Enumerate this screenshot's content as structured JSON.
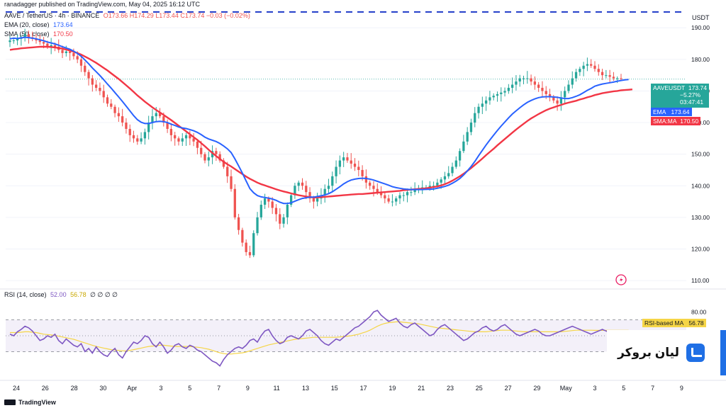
{
  "header": {
    "publisher": "ranadagger published on TradingView.com, May 04, 2025 16:12 UTC",
    "symbol_line": "AAVE / TetherUS · 4h · BINANCE",
    "ohlc": "O173.66 H174.29 L173.44 C173.74 −0.03 (−0.02%)",
    "ema_label": "EMA (20, close)",
    "ema_value": "173.64",
    "sma_label": "SMA (50, close)",
    "sma_value": "170.50",
    "rsi_label": "RSI (14, close)",
    "rsi_value": "52.00",
    "rsi_ma_value": "56.78",
    "rsi_extra": "∅ ∅ ∅ ∅"
  },
  "price_axis": {
    "unit": "USDT",
    "ticks": [
      190,
      180,
      170,
      160,
      150,
      140,
      130,
      120,
      110
    ],
    "tick_labels": [
      "190.00",
      "180.00",
      "170.00",
      "160.00",
      "150.00",
      "140.00",
      "130.00",
      "120.00",
      "110.00"
    ]
  },
  "rsi_axis": {
    "tick_labels": [
      "80.00"
    ],
    "upper_band": 70,
    "lower_band": 30
  },
  "price_tags": {
    "symbol": "AAVEUSDT",
    "price": "173.74",
    "change": "−5.27%",
    "countdown": "03:47:41",
    "ema_tag": "EMA",
    "ema_value": "173.64",
    "sma_tag": "SMA:MA",
    "sma_value": "170.50",
    "rsi_ma_tag": "RSI-based MA",
    "rsi_ma_value": "56.78"
  },
  "x_axis": {
    "labels": [
      "24",
      "26",
      "28",
      "30",
      "Apr",
      "3",
      "5",
      "7",
      "9",
      "11",
      "13",
      "15",
      "17",
      "19",
      "21",
      "23",
      "25",
      "27",
      "29",
      "May",
      "3",
      "5",
      "7",
      "9"
    ]
  },
  "colors": {
    "up": "#26a69a",
    "down": "#ef5350",
    "ema": "#2962ff",
    "sma": "#f23645",
    "rsi": "#7e57c2",
    "rsi_ma": "#f5d547",
    "dashed": "#1e3ac8"
  },
  "brand": {
    "name": "لیان بروکر"
  },
  "footer": {
    "tradingview": "TradingView"
  },
  "chart_data": {
    "type": "candlestick",
    "timeframe": "4h",
    "x_start": "Mar 24",
    "x_end": "May 4",
    "ylim": [
      108,
      197
    ],
    "dashed_level": 195,
    "closes": [
      186,
      186,
      186.5,
      187,
      188,
      187,
      186.5,
      186,
      185.5,
      185,
      184,
      184.5,
      184,
      183,
      182,
      182.5,
      182,
      181,
      180,
      178,
      176,
      174,
      172,
      171,
      170,
      168,
      166,
      165,
      163,
      162,
      160,
      158,
      156,
      155,
      154,
      155,
      157,
      160,
      162,
      163,
      162,
      160,
      158,
      156,
      155,
      154,
      155,
      156,
      155,
      154,
      152,
      150,
      148,
      149,
      151,
      150,
      148,
      146,
      143,
      139,
      130,
      126,
      122,
      119,
      118,
      125,
      130,
      134,
      136,
      135,
      133,
      131,
      128,
      130,
      134,
      137,
      140,
      141,
      140,
      138,
      136,
      135,
      136,
      137,
      139,
      140,
      143,
      146,
      148,
      149,
      148,
      147,
      146,
      145,
      143,
      141,
      140,
      139,
      138,
      137,
      136,
      135,
      135,
      136,
      137,
      137,
      138,
      138,
      139,
      139,
      139.5,
      139.5,
      140,
      140,
      141,
      142,
      143,
      144,
      146,
      148,
      151,
      154,
      157,
      160,
      163,
      165,
      166,
      167,
      168,
      168.5,
      169,
      169.5,
      170,
      171,
      172,
      173,
      174,
      174,
      174,
      173,
      172,
      171,
      170,
      169,
      168,
      167,
      166,
      168,
      170,
      172,
      174,
      176,
      177,
      178,
      178.5,
      178,
      177,
      176,
      175,
      175,
      174.5,
      174,
      174,
      173.74
    ],
    "ema_20": [
      186.5,
      186.7,
      186.6,
      186.8,
      187.0,
      186.9,
      186.7,
      186.5,
      186.2,
      185.9,
      185.5,
      185.2,
      184.9,
      184.5,
      184.0,
      183.6,
      183.2,
      182.6,
      181.9,
      181.0,
      179.8,
      178.6,
      177.3,
      176.1,
      174.9,
      173.6,
      172.2,
      170.9,
      169.5,
      168.1,
      166.7,
      165.2,
      163.7,
      162.2,
      160.9,
      160.1,
      159.7,
      159.7,
      160.0,
      160.3,
      160.4,
      160.3,
      160.0,
      159.5,
      159.1,
      158.6,
      158.3,
      158.1,
      157.8,
      157.4,
      156.9,
      156.2,
      155.4,
      154.8,
      154.4,
      154.0,
      153.4,
      152.6,
      151.7,
      150.5,
      148.5,
      146.3,
      144.0,
      141.5,
      139.1,
      137.8,
      136.9,
      136.5,
      136.3,
      136.1,
      135.8,
      135.4,
      134.8,
      134.4,
      134.4,
      134.6,
      135.1,
      135.6,
      136.0,
      136.2,
      136.4,
      136.4,
      136.6,
      136.8,
      137.1,
      137.5,
      138.1,
      138.9,
      139.7,
      140.6,
      141.3,
      141.8,
      142.1,
      142.3,
      142.4,
      142.3,
      142.1,
      141.8,
      141.4,
      141.0,
      140.6,
      140.2,
      139.7,
      139.4,
      139.2,
      139.0,
      138.9,
      138.8,
      138.8,
      138.8,
      138.8,
      138.9,
      138.9,
      139.0,
      139.2,
      139.5,
      139.8,
      140.2,
      140.8,
      141.5,
      142.3,
      143.4,
      144.7,
      146.1,
      147.7,
      149.5,
      151.2,
      152.9,
      154.5,
      156.0,
      157.5,
      158.9,
      160.2,
      161.5,
      162.7,
      163.7,
      164.7,
      165.6,
      166.4,
      167.0,
      167.5,
      167.9,
      168.1,
      168.2,
      168.2,
      168.1,
      168.0,
      167.8,
      167.6,
      167.6,
      167.9,
      168.3,
      168.8,
      169.5,
      170.2,
      170.8,
      171.5,
      171.9,
      172.2,
      172.4,
      172.6,
      172.8,
      173.1,
      173.3,
      173.5,
      173.64
    ],
    "sma_50": [
      183,
      183.2,
      183.3,
      183.5,
      183.6,
      183.7,
      183.8,
      183.9,
      184.0,
      184.0,
      184.0,
      183.9,
      183.8,
      183.6,
      183.4,
      183.1,
      182.8,
      182.4,
      182.0,
      181.5,
      180.9,
      180.3,
      179.6,
      178.9,
      178.1,
      177.3,
      176.5,
      175.6,
      174.7,
      173.8,
      172.8,
      171.8,
      170.8,
      169.7,
      168.6,
      167.6,
      166.6,
      165.7,
      164.8,
      164.0,
      163.2,
      162.4,
      161.6,
      160.8,
      159.9,
      159.0,
      158.1,
      157.2,
      156.3,
      155.4,
      154.5,
      153.5,
      152.5,
      151.4,
      150.4,
      149.4,
      148.5,
      147.6,
      146.8,
      146.1,
      145.3,
      144.5,
      143.7,
      142.9,
      142.2,
      141.6,
      141.0,
      140.5,
      140.1,
      139.7,
      139.3,
      138.9,
      138.5,
      138.2,
      137.9,
      137.6,
      137.3,
      137.0,
      136.8,
      136.6,
      136.4,
      136.3,
      136.3,
      136.4,
      136.5,
      136.6,
      136.7,
      136.8,
      136.9,
      137.0,
      137.1,
      137.2,
      137.3,
      137.4,
      137.4,
      137.5,
      137.6,
      137.7,
      137.8,
      137.9,
      138.0,
      138.1,
      138.2,
      138.3,
      138.4,
      138.6,
      138.7,
      138.8,
      138.9,
      139.0,
      139.1,
      139.2,
      139.4,
      139.6,
      139.8,
      140.1,
      140.5,
      141.0,
      141.6,
      142.3,
      143.0,
      143.8,
      144.7,
      145.6,
      146.6,
      147.6,
      148.6,
      149.7,
      150.7,
      151.7,
      152.8,
      153.8,
      154.8,
      155.8,
      156.8,
      157.8,
      158.7,
      159.6,
      160.5,
      161.3,
      162.0,
      162.7,
      163.3,
      163.9,
      164.4,
      164.8,
      165.2,
      165.6,
      166.0,
      166.3,
      166.6,
      166.9,
      167.3,
      167.6,
      168.0,
      168.3,
      168.7,
      169.0,
      169.3,
      169.5,
      169.7,
      169.9,
      170.0,
      170.2,
      170.3,
      170.4,
      170.5
    ],
    "rsi_14": [
      52,
      50,
      55,
      58,
      62,
      60,
      56,
      50,
      44,
      46,
      50,
      48,
      52,
      44,
      40,
      46,
      42,
      38,
      36,
      40,
      30,
      34,
      28,
      36,
      30,
      26,
      24,
      30,
      34,
      26,
      22,
      30,
      36,
      42,
      40,
      44,
      50,
      48,
      40,
      36,
      42,
      36,
      28,
      32,
      38,
      40,
      36,
      34,
      38,
      36,
      32,
      30,
      26,
      22,
      18,
      16,
      12,
      20,
      26,
      30,
      34,
      36,
      34,
      38,
      44,
      46,
      42,
      50,
      56,
      58,
      50,
      44,
      40,
      42,
      48,
      50,
      48,
      46,
      50,
      56,
      58,
      54,
      50,
      44,
      40,
      38,
      42,
      46,
      44,
      48,
      52,
      56,
      60,
      62,
      66,
      70,
      74,
      80,
      82,
      76,
      72,
      68,
      70,
      72,
      66,
      62,
      60,
      64,
      66,
      62,
      58,
      54,
      50,
      52,
      58,
      62,
      64,
      60,
      56,
      52,
      48,
      44,
      46,
      50,
      54,
      56,
      60,
      62,
      58,
      56,
      58,
      62,
      64,
      60,
      56,
      52,
      50,
      52,
      54,
      56,
      58,
      56,
      52,
      50,
      50,
      52,
      54,
      56,
      58,
      60,
      62,
      60,
      58,
      56,
      54,
      52,
      54,
      56,
      58,
      56,
      54,
      52,
      52,
      52,
      52
    ],
    "rsi_ma": [
      54,
      54,
      54,
      54.5,
      55,
      55,
      54.5,
      54,
      53,
      52,
      51.5,
      51,
      50.5,
      49.5,
      48.5,
      47.5,
      46.5,
      45.5,
      44,
      42.5,
      41,
      39.5,
      38,
      36.5,
      35.5,
      34.5,
      33.5,
      32.5,
      32,
      31.5,
      31,
      31,
      31.5,
      32.5,
      33.5,
      34.5,
      35.5,
      36.5,
      37,
      37.5,
      38,
      38,
      37.5,
      37,
      36.5,
      36.5,
      36.5,
      36.5,
      36.5,
      36,
      35.5,
      35,
      34,
      33,
      31.5,
      30,
      28.5,
      27.5,
      27,
      27,
      27.5,
      28,
      28.5,
      29.5,
      31,
      32.5,
      34,
      35.5,
      37,
      38.5,
      39.5,
      40.5,
      41.5,
      42.5,
      43.5,
      44.5,
      45.5,
      46,
      46.5,
      47,
      47.5,
      48,
      48,
      48,
      48,
      48,
      48,
      48,
      48.5,
      49,
      49.5,
      50,
      51,
      52,
      53.5,
      55,
      57,
      59.5,
      62,
      64,
      65.5,
      66.5,
      67,
      67.5,
      67.5,
      67,
      66.5,
      66,
      65.5,
      65,
      64,
      63,
      62,
      61,
      60,
      59.5,
      59,
      58.5,
      58,
      57.5,
      57,
      56.5,
      56,
      55.5,
      55,
      55,
      55,
      55,
      55.5,
      56,
      56.5,
      57,
      57,
      57,
      56.5,
      56,
      55.5,
      55,
      55,
      55,
      55,
      55,
      55,
      55,
      55,
      55,
      55,
      55,
      55.5,
      56,
      56.5,
      57,
      57,
      57,
      57,
      57,
      56.8,
      56.8,
      56.8,
      56.8,
      56.78,
      56.78,
      56.78,
      56.78,
      56.78,
      56.78
    ]
  }
}
